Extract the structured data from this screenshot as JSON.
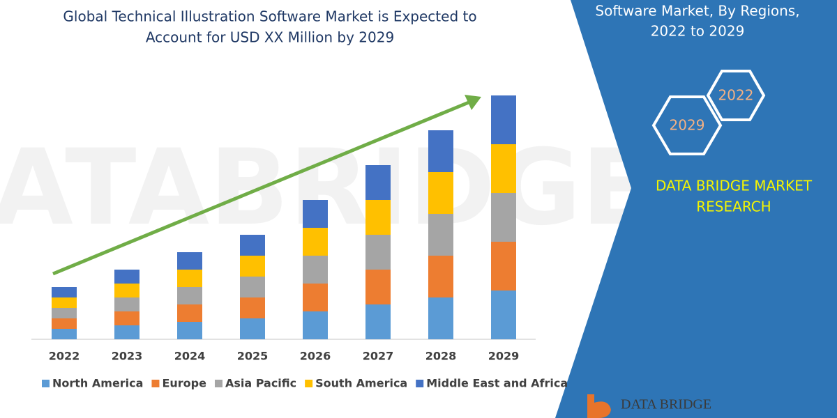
{
  "chart_data": {
    "type": "bar",
    "stacked": true,
    "title": [
      "Global Technical Illustration Software Market is Expected to",
      "Account for USD XX Million by 2029"
    ],
    "categories": [
      "2022",
      "2023",
      "2024",
      "2025",
      "2026",
      "2027",
      "2028",
      "2029"
    ],
    "series": [
      {
        "name": "North America",
        "color": "#5b9bd5",
        "values": [
          15,
          20,
          25,
          30,
          40,
          50,
          60,
          70
        ]
      },
      {
        "name": "Europe",
        "color": "#ed7d31",
        "values": [
          15,
          20,
          25,
          30,
          40,
          50,
          60,
          70
        ]
      },
      {
        "name": "Asia Pacific",
        "color": "#a5a5a5",
        "values": [
          15,
          20,
          25,
          30,
          40,
          50,
          60,
          70
        ]
      },
      {
        "name": "South America",
        "color": "#ffc000",
        "values": [
          15,
          20,
          25,
          30,
          40,
          50,
          60,
          70
        ]
      },
      {
        "name": "Middle East and Africa",
        "color": "#4472c4",
        "values": [
          15,
          20,
          25,
          30,
          40,
          50,
          60,
          70
        ]
      }
    ],
    "ylim": [
      0,
      360
    ]
  },
  "panel": {
    "heading": [
      "Software Market, By Regions,",
      "2022 to 2029"
    ],
    "badges": [
      "2022",
      "2029"
    ],
    "brand": [
      "DATA BRIDGE MARKET",
      "RESEARCH"
    ],
    "logo": "DATA BRIDGE"
  }
}
